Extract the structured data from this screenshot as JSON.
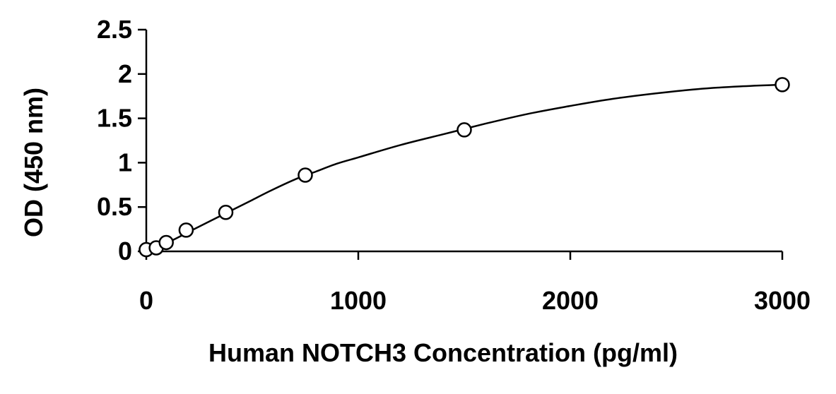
{
  "chart_data": {
    "type": "scatter",
    "xlabel": "Human NOTCH3 Concentration (pg/ml)",
    "ylabel": "OD (450 nm)",
    "xlim": [
      0,
      3000
    ],
    "ylim": [
      0,
      2.5
    ],
    "x_ticks": [
      0,
      1000,
      2000,
      3000
    ],
    "x_tick_labels": [
      "0",
      "1000",
      "2000",
      "3000"
    ],
    "y_ticks": [
      0,
      0.5,
      1,
      1.5,
      2,
      2.5
    ],
    "y_tick_labels": [
      "0",
      "0.5",
      "1",
      "1.5",
      "2",
      "2.5"
    ],
    "grid": false,
    "legend": "none",
    "series": [
      {
        "points": [
          {
            "x": 0,
            "y": 0.02
          },
          {
            "x": 47,
            "y": 0.04
          },
          {
            "x": 94,
            "y": 0.1
          },
          {
            "x": 188,
            "y": 0.24
          },
          {
            "x": 375,
            "y": 0.44
          },
          {
            "x": 750,
            "y": 0.86
          },
          {
            "x": 1500,
            "y": 1.37
          },
          {
            "x": 3000,
            "y": 1.88
          }
        ],
        "fit_curve": {
          "x": [
            0,
            100,
            200,
            300,
            400,
            500,
            600,
            700,
            800,
            900,
            1000,
            1200,
            1400,
            1600,
            1800,
            2000,
            2200,
            2400,
            2600,
            2800,
            3000
          ],
          "y": [
            0.02,
            0.1,
            0.22,
            0.34,
            0.46,
            0.58,
            0.7,
            0.81,
            0.9,
            0.99,
            1.06,
            1.2,
            1.32,
            1.44,
            1.55,
            1.64,
            1.72,
            1.78,
            1.83,
            1.86,
            1.88
          ]
        }
      }
    ]
  }
}
